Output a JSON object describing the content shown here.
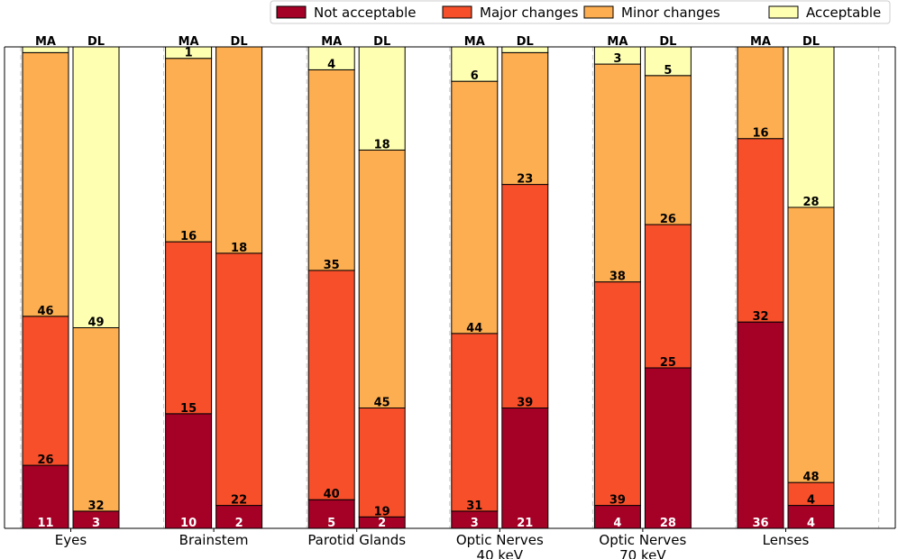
{
  "chart_data": {
    "type": "bar",
    "stacked": true,
    "grid": "vertical dashed separators between groups",
    "legend_position": "top-right",
    "categories": [
      [
        "Eyes"
      ],
      [
        "Brainstem"
      ],
      [
        "Parotid Glands"
      ],
      [
        "Optic Nerves",
        "40 keV"
      ],
      [
        "Optic Nerves",
        "70 keV"
      ],
      [
        "Lenses"
      ]
    ],
    "methods": [
      "MA",
      "DL"
    ],
    "series": [
      {
        "name": "Not acceptable",
        "color": "#a50026"
      },
      {
        "name": "Major changes",
        "color": "#f74f2a"
      },
      {
        "name": "Minor changes",
        "color": "#fdae50"
      },
      {
        "name": "Acceptable",
        "color": "#ffffb2"
      }
    ],
    "bars": [
      {
        "category": 0,
        "method": "MA",
        "values": [
          11,
          26,
          46,
          1
        ],
        "labels": [
          "11",
          "26",
          "46",
          ""
        ]
      },
      {
        "category": 0,
        "method": "DL",
        "values": [
          3,
          0,
          32,
          49
        ],
        "labels": [
          "3",
          "",
          "32",
          "49"
        ]
      },
      {
        "category": 1,
        "method": "MA",
        "values": [
          10,
          15,
          16,
          1
        ],
        "labels": [
          "10",
          "15",
          "16",
          "1"
        ]
      },
      {
        "category": 1,
        "method": "DL",
        "values": [
          2,
          22,
          18,
          0
        ],
        "labels": [
          "2",
          "22",
          "18",
          ""
        ]
      },
      {
        "category": 2,
        "method": "MA",
        "values": [
          5,
          40,
          35,
          4
        ],
        "labels": [
          "5",
          "40",
          "35",
          "4"
        ]
      },
      {
        "category": 2,
        "method": "DL",
        "values": [
          2,
          19,
          45,
          18
        ],
        "labels": [
          "2",
          "19",
          "45",
          "18"
        ]
      },
      {
        "category": 3,
        "method": "MA",
        "values": [
          3,
          31,
          44,
          6
        ],
        "labels": [
          "3",
          "31",
          "44",
          "6"
        ]
      },
      {
        "category": 3,
        "method": "DL",
        "values": [
          21,
          39,
          23,
          1
        ],
        "labels": [
          "21",
          "39",
          "23",
          ""
        ]
      },
      {
        "category": 4,
        "method": "MA",
        "values": [
          4,
          39,
          38,
          3
        ],
        "labels": [
          "4",
          "39",
          "38",
          "3"
        ]
      },
      {
        "category": 4,
        "method": "DL",
        "values": [
          28,
          25,
          26,
          5
        ],
        "labels": [
          "28",
          "25",
          "26",
          "5"
        ]
      },
      {
        "category": 5,
        "method": "MA",
        "values": [
          36,
          32,
          16,
          0
        ],
        "labels": [
          "36",
          "32",
          "16",
          ""
        ]
      },
      {
        "category": 5,
        "method": "DL",
        "values": [
          4,
          4,
          48,
          28
        ],
        "labels": [
          "4",
          "4",
          "48",
          "28"
        ]
      }
    ]
  }
}
